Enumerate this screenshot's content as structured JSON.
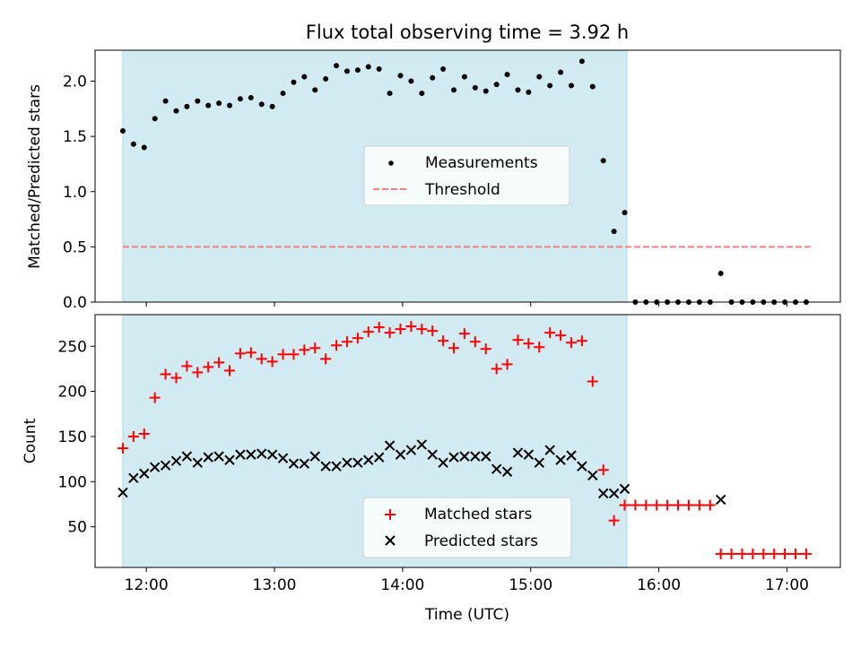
{
  "chart_data": [
    {
      "type": "scatter",
      "title": "Flux total observing time = 3.92 h",
      "xlabel": "",
      "ylabel": "Matched/Predicted stars",
      "xlim": [
        "11:36",
        "17:25"
      ],
      "ylim": [
        0,
        2.28
      ],
      "yticks": [
        "0.0",
        "0.5",
        "1.0",
        "1.5",
        "2.0"
      ],
      "observing_window": [
        "11:49",
        "15:45"
      ],
      "threshold": 0.5,
      "legend_position": "center",
      "series": [
        {
          "name": "Measurements",
          "color": "#000000",
          "marker": "dot",
          "points": [
            [
              "11:49",
              1.55
            ],
            [
              "11:54",
              1.43
            ],
            [
              "11:59",
              1.4
            ],
            [
              "12:04",
              1.66
            ],
            [
              "12:09",
              1.82
            ],
            [
              "12:14",
              1.73
            ],
            [
              "12:19",
              1.77
            ],
            [
              "12:24",
              1.82
            ],
            [
              "12:29",
              1.78
            ],
            [
              "12:34",
              1.8
            ],
            [
              "12:39",
              1.78
            ],
            [
              "12:44",
              1.84
            ],
            [
              "12:49",
              1.85
            ],
            [
              "12:54",
              1.79
            ],
            [
              "12:59",
              1.77
            ],
            [
              "13:04",
              1.89
            ],
            [
              "13:09",
              1.99
            ],
            [
              "13:14",
              2.04
            ],
            [
              "13:19",
              1.92
            ],
            [
              "13:24",
              2.02
            ],
            [
              "13:29",
              2.14
            ],
            [
              "13:34",
              2.09
            ],
            [
              "13:39",
              2.1
            ],
            [
              "13:44",
              2.13
            ],
            [
              "13:49",
              2.11
            ],
            [
              "13:54",
              1.89
            ],
            [
              "13:59",
              2.05
            ],
            [
              "14:04",
              2.0
            ],
            [
              "14:09",
              1.89
            ],
            [
              "14:14",
              2.03
            ],
            [
              "14:19",
              2.11
            ],
            [
              "14:24",
              1.92
            ],
            [
              "14:29",
              2.04
            ],
            [
              "14:34",
              1.94
            ],
            [
              "14:39",
              1.91
            ],
            [
              "14:44",
              1.97
            ],
            [
              "14:49",
              2.06
            ],
            [
              "14:54",
              1.92
            ],
            [
              "14:59",
              1.9
            ],
            [
              "15:04",
              2.04
            ],
            [
              "15:09",
              1.96
            ],
            [
              "15:14",
              2.08
            ],
            [
              "15:19",
              1.96
            ],
            [
              "15:24",
              2.18
            ],
            [
              "15:29",
              1.95
            ],
            [
              "15:34",
              1.28
            ],
            [
              "15:39",
              0.64
            ],
            [
              "15:44",
              0.81
            ],
            [
              "15:49",
              0.0
            ],
            [
              "15:54",
              0.0
            ],
            [
              "15:59",
              0.0
            ],
            [
              "16:04",
              0.0
            ],
            [
              "16:09",
              0.0
            ],
            [
              "16:14",
              0.0
            ],
            [
              "16:19",
              0.0
            ],
            [
              "16:24",
              0.0
            ],
            [
              "16:29",
              0.26
            ],
            [
              "16:34",
              0.0
            ],
            [
              "16:39",
              0.0
            ],
            [
              "16:44",
              0.0
            ],
            [
              "16:49",
              0.0
            ],
            [
              "16:54",
              0.0
            ],
            [
              "16:59",
              0.0
            ],
            [
              "17:04",
              0.0
            ],
            [
              "17:09",
              0.0
            ]
          ]
        },
        {
          "name": "Threshold",
          "color": "#f08080",
          "style": "dashed",
          "points": [
            [
              "11:49",
              0.5
            ],
            [
              "17:11",
              0.5
            ]
          ]
        }
      ]
    },
    {
      "type": "scatter",
      "title": "",
      "xlabel": "Time (UTC)",
      "ylabel": "Count",
      "xlim": [
        "11:36",
        "17:25"
      ],
      "ylim": [
        5,
        285
      ],
      "xticks": [
        "12:00",
        "13:00",
        "14:00",
        "15:00",
        "16:00",
        "17:00"
      ],
      "yticks": [
        "50",
        "100",
        "150",
        "200",
        "250"
      ],
      "observing_window": [
        "11:49",
        "15:45"
      ],
      "legend_position": "lower center",
      "series": [
        {
          "name": "Matched stars",
          "color": "#ff0000",
          "marker": "plus",
          "points": [
            [
              "11:49",
              137
            ],
            [
              "11:54",
              150
            ],
            [
              "11:59",
              153
            ],
            [
              "12:04",
              193
            ],
            [
              "12:09",
              219
            ],
            [
              "12:14",
              215
            ],
            [
              "12:19",
              228
            ],
            [
              "12:24",
              221
            ],
            [
              "12:29",
              227
            ],
            [
              "12:34",
              232
            ],
            [
              "12:39",
              223
            ],
            [
              "12:44",
              242
            ],
            [
              "12:49",
              243
            ],
            [
              "12:54",
              236
            ],
            [
              "12:59",
              233
            ],
            [
              "13:04",
              241
            ],
            [
              "13:09",
              241
            ],
            [
              "13:14",
              246
            ],
            [
              "13:19",
              248
            ],
            [
              "13:24",
              236
            ],
            [
              "13:29",
              251
            ],
            [
              "13:34",
              255
            ],
            [
              "13:39",
              259
            ],
            [
              "13:44",
              266
            ],
            [
              "13:49",
              271
            ],
            [
              "13:54",
              265
            ],
            [
              "13:59",
              269
            ],
            [
              "14:04",
              272
            ],
            [
              "14:09",
              269
            ],
            [
              "14:14",
              267
            ],
            [
              "14:19",
              256
            ],
            [
              "14:24",
              248
            ],
            [
              "14:29",
              264
            ],
            [
              "14:34",
              255
            ],
            [
              "14:39",
              247
            ],
            [
              "14:44",
              225
            ],
            [
              "14:49",
              230
            ],
            [
              "14:54",
              257
            ],
            [
              "14:59",
              253
            ],
            [
              "15:04",
              249
            ],
            [
              "15:09",
              265
            ],
            [
              "15:14",
              262
            ],
            [
              "15:19",
              254
            ],
            [
              "15:24",
              256
            ],
            [
              "15:29",
              211
            ],
            [
              "15:34",
              113
            ],
            [
              "15:39",
              57
            ],
            [
              "15:44",
              74
            ],
            [
              "15:49",
              74
            ],
            [
              "15:54",
              74
            ],
            [
              "15:59",
              74
            ],
            [
              "16:04",
              74
            ],
            [
              "16:09",
              74
            ],
            [
              "16:14",
              74
            ],
            [
              "16:19",
              74
            ],
            [
              "16:24",
              74
            ],
            [
              "16:29",
              20
            ],
            [
              "16:34",
              20
            ],
            [
              "16:39",
              20
            ],
            [
              "16:44",
              20
            ],
            [
              "16:49",
              20
            ],
            [
              "16:54",
              20
            ],
            [
              "16:59",
              20
            ],
            [
              "17:04",
              20
            ],
            [
              "17:09",
              20
            ]
          ]
        },
        {
          "name": "Predicted stars",
          "color": "#000000",
          "marker": "x",
          "points": [
            [
              "11:49",
              88
            ],
            [
              "11:54",
              104
            ],
            [
              "11:59",
              109
            ],
            [
              "12:04",
              116
            ],
            [
              "12:09",
              118
            ],
            [
              "12:14",
              123
            ],
            [
              "12:19",
              128
            ],
            [
              "12:24",
              121
            ],
            [
              "12:29",
              127
            ],
            [
              "12:34",
              128
            ],
            [
              "12:39",
              124
            ],
            [
              "12:44",
              130
            ],
            [
              "12:49",
              130
            ],
            [
              "12:54",
              131
            ],
            [
              "12:59",
              130
            ],
            [
              "13:04",
              126
            ],
            [
              "13:09",
              120
            ],
            [
              "13:14",
              120
            ],
            [
              "13:19",
              128
            ],
            [
              "13:24",
              117
            ],
            [
              "13:29",
              117
            ],
            [
              "13:34",
              121
            ],
            [
              "13:39",
              121
            ],
            [
              "13:44",
              124
            ],
            [
              "13:49",
              127
            ],
            [
              "13:54",
              140
            ],
            [
              "13:59",
              130
            ],
            [
              "14:04",
              135
            ],
            [
              "14:09",
              141
            ],
            [
              "14:14",
              130
            ],
            [
              "14:19",
              121
            ],
            [
              "14:24",
              127
            ],
            [
              "14:29",
              128
            ],
            [
              "14:34",
              128
            ],
            [
              "14:39",
              128
            ],
            [
              "14:44",
              114
            ],
            [
              "14:49",
              111
            ],
            [
              "14:54",
              132
            ],
            [
              "14:59",
              130
            ],
            [
              "15:04",
              121
            ],
            [
              "15:09",
              135
            ],
            [
              "15:14",
              124
            ],
            [
              "15:19",
              129
            ],
            [
              "15:24",
              117
            ],
            [
              "15:29",
              107
            ],
            [
              "15:34",
              87
            ],
            [
              "15:39",
              87
            ],
            [
              "15:44",
              92
            ],
            [
              "16:29",
              80
            ]
          ]
        }
      ]
    }
  ],
  "styles": {
    "background": "#ffffff",
    "observing_window_color": "#add8e6",
    "axis_color": "#000000"
  }
}
